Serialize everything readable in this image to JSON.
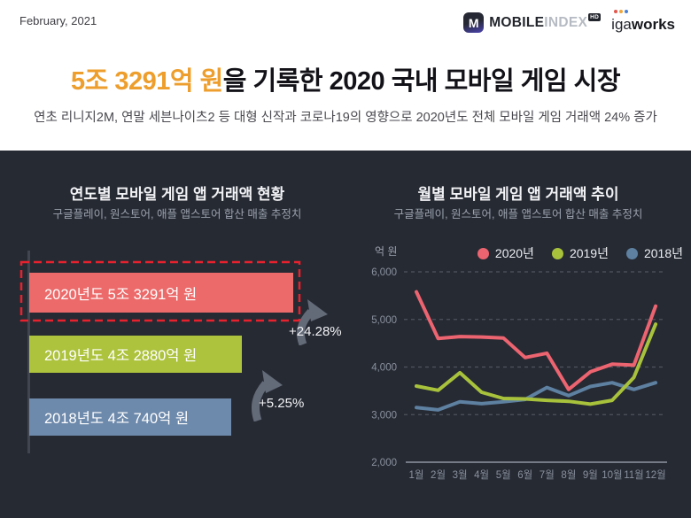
{
  "header": {
    "date": "February, 2021",
    "logos": {
      "mobileindex": {
        "m": "M",
        "mobile": "MOBILE",
        "index": "INDEX",
        "hd": "HD"
      },
      "igaworks": {
        "iga": "iga",
        "works": "works",
        "dot_colors": [
          "#E2574C",
          "#F0A63C",
          "#4A7FD4"
        ]
      }
    },
    "title": {
      "highlight": "5조 3291억 원",
      "rest": "을 기록한 2020 국내 모바일 게임 시장"
    },
    "subtitle": "연초 리니지2M, 연말 세븐나이츠2 등 대형 신작과 코로나19의 영향으로 2020년도 전체 모바일 게임 거래액 24% 증가"
  },
  "left_panel": {
    "title": "연도별 모바일 게임 앱 거래액 현황",
    "subtitle": "구글플레이, 원스토어, 애플 앱스토어 합산 매출 추정치",
    "bars": [
      {
        "year": "2020",
        "label": "2020년도 5조 3291억 원",
        "value": 53291,
        "color": "#EC6A6A",
        "highlighted": true
      },
      {
        "year": "2019",
        "label": "2019년도 4조 2880억 원",
        "value": 42880,
        "color": "#ADC23D",
        "highlighted": false
      },
      {
        "year": "2018",
        "label": "2018년도 4조 740억 원",
        "value": 40740,
        "color": "#6D89AB",
        "highlighted": false
      }
    ],
    "growth": [
      {
        "between": "2019→2020",
        "label": "+24.28%"
      },
      {
        "between": "2018→2019",
        "label": "+5.25%"
      }
    ],
    "highlight_border_color": "#E8212E"
  },
  "right_panel": {
    "title": "월별 모바일 게임 앱 거래액 추이",
    "subtitle": "구글플레이, 원스토어, 애플 앱스토어 합산 매출 추정치",
    "y_unit": "억 원"
  },
  "chart_data": {
    "type": "line",
    "title": "월별 모바일 게임 앱 거래액 추이",
    "categories": [
      "1월",
      "2월",
      "3월",
      "4월",
      "5월",
      "6월",
      "7월",
      "8월",
      "9월",
      "10월",
      "11월",
      "12월"
    ],
    "series": [
      {
        "name": "2020년",
        "color": "#EC6470",
        "values": [
          5580,
          4600,
          4640,
          4630,
          4610,
          4200,
          4290,
          3530,
          3900,
          4060,
          4040,
          5280
        ]
      },
      {
        "name": "2019년",
        "color": "#A8C23C",
        "values": [
          3600,
          3510,
          3880,
          3470,
          3340,
          3330,
          3300,
          3280,
          3220,
          3300,
          3780,
          4900
        ]
      },
      {
        "name": "2018년",
        "color": "#5E80A1",
        "values": [
          3150,
          3100,
          3270,
          3230,
          3270,
          3320,
          3570,
          3400,
          3590,
          3670,
          3530,
          3670
        ]
      }
    ],
    "ylabel": "억 원",
    "xlabel": "",
    "ylim": [
      2000,
      6000
    ],
    "yticks": [
      2000,
      3000,
      4000,
      5000,
      6000
    ],
    "grid": "horizontal-dashed",
    "legend_position": "top-right",
    "colors": {
      "grid": "#4F545E",
      "baseline": "#757B86",
      "tick_text": "#8A919E"
    }
  },
  "theme": {
    "header_bg": "#FFFFFF",
    "panel_bg": "#262A33",
    "title_highlight": "#ED9E2C",
    "arrow_color": "#646B78"
  }
}
